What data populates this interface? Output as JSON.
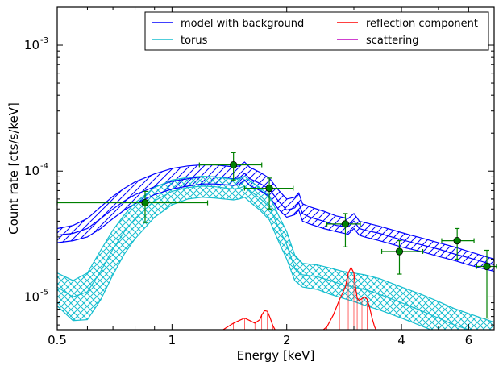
{
  "chart_data": {
    "type": "line",
    "title": "",
    "xlabel": "Energy [keV]",
    "ylabel": "Count rate [cts/s/keV]",
    "xscale": "log",
    "yscale": "log",
    "xlim": [
      0.5,
      7.0
    ],
    "ylim": [
      5.5e-06,
      0.002
    ],
    "x_ticks": [
      {
        "value": 0.5,
        "label": "0.5"
      },
      {
        "value": 1,
        "label": "1"
      },
      {
        "value": 2,
        "label": "2"
      },
      {
        "value": 4,
        "label": "4"
      },
      {
        "value": 6,
        "label": "6"
      }
    ],
    "y_ticks": [
      {
        "value": 1e-05,
        "base": "10",
        "exp": "-5"
      },
      {
        "value": 0.0001,
        "base": "10",
        "exp": "-4"
      },
      {
        "value": 0.001,
        "base": "10",
        "exp": "-3"
      }
    ],
    "legend": {
      "placement": "top-right",
      "entries": [
        {
          "label": "model with background",
          "color": "#0000ff"
        },
        {
          "label": "reflection component",
          "color": "#ff0000"
        },
        {
          "label": "torus",
          "color": "#17becf"
        },
        {
          "label": "scattering",
          "color": "#bf00bf"
        }
      ]
    },
    "series": [
      {
        "name": "model with background",
        "color": "#0000ff",
        "style": "band-hatched",
        "x": [
          0.5,
          0.55,
          0.6,
          0.65,
          0.7,
          0.75,
          0.8,
          0.9,
          1.0,
          1.1,
          1.2,
          1.3,
          1.45,
          1.5,
          1.55,
          1.6,
          1.7,
          1.8,
          1.9,
          2.0,
          2.1,
          2.15,
          2.2,
          2.3,
          2.5,
          2.7,
          2.9,
          3.0,
          3.1,
          3.2,
          3.5,
          4.0,
          4.5,
          5.0,
          5.5,
          6.0,
          7.0
        ],
        "y": [
          3.1e-05,
          3.2e-05,
          3.5e-05,
          4.2e-05,
          5e-05,
          5.8e-05,
          6.5e-05,
          7.5e-05,
          8.3e-05,
          8.7e-05,
          9e-05,
          9e-05,
          8.7e-05,
          8.8e-05,
          9.6e-05,
          8.7e-05,
          8e-05,
          7.2e-05,
          5.8e-05,
          4.9e-05,
          5.1e-05,
          5.6e-05,
          4.6e-05,
          4.3e-05,
          4e-05,
          3.7e-05,
          3.6e-05,
          4e-05,
          3.5e-05,
          3.4e-05,
          3.2e-05,
          2.85e-05,
          2.6e-05,
          2.4e-05,
          2.2e-05,
          2.05e-05,
          1.8e-05
        ],
        "lo": [
          2.7e-05,
          2.8e-05,
          3e-05,
          3.5e-05,
          4.2e-05,
          4.9e-05,
          5.5e-05,
          6.5e-05,
          7.2e-05,
          7.6e-05,
          7.9e-05,
          7.9e-05,
          7.7e-05,
          7.8e-05,
          8.5e-05,
          7.7e-05,
          7e-05,
          6.3e-05,
          5e-05,
          4.3e-05,
          4.5e-05,
          4.9e-05,
          4e-05,
          3.8e-05,
          3.5e-05,
          3.3e-05,
          3.15e-05,
          3.5e-05,
          3.1e-05,
          3e-05,
          2.8e-05,
          2.5e-05,
          2.3e-05,
          2.1e-05,
          1.95e-05,
          1.8e-05,
          1.6e-05
        ],
        "hi": [
          3.5e-05,
          3.7e-05,
          4.2e-05,
          5.2e-05,
          6.3e-05,
          7.3e-05,
          8.2e-05,
          9.5e-05,
          0.000105,
          0.00011,
          0.000112,
          0.000112,
          0.000108,
          0.00011,
          0.000118,
          0.000107,
          9.8e-05,
          8.8e-05,
          7.1e-05,
          6e-05,
          6.2e-05,
          6.7e-05,
          5.5e-05,
          5.2e-05,
          4.8e-05,
          4.4e-05,
          4.2e-05,
          4.6e-05,
          4e-05,
          3.9e-05,
          3.65e-05,
          3.25e-05,
          2.95e-05,
          2.7e-05,
          2.5e-05,
          2.3e-05,
          2e-05
        ]
      },
      {
        "name": "torus",
        "color": "#17becf",
        "style": "band-crosshatched",
        "x": [
          0.5,
          0.55,
          0.6,
          0.65,
          0.7,
          0.75,
          0.8,
          0.9,
          1.0,
          1.1,
          1.2,
          1.3,
          1.45,
          1.5,
          1.55,
          1.6,
          1.7,
          1.8,
          1.9,
          2.0,
          2.1,
          2.2,
          2.4,
          2.6,
          2.8,
          3.0,
          3.2,
          3.5,
          4.0,
          4.5,
          5.0,
          5.5,
          6.0,
          7.0
        ],
        "y": [
          1.2e-05,
          1e-05,
          1.1e-05,
          1.6e-05,
          2.4e-05,
          3.3e-05,
          4.2e-05,
          5.8e-05,
          6.9e-05,
          7.4e-05,
          7.6e-05,
          7.5e-05,
          7.2e-05,
          7.3e-05,
          7.6e-05,
          7e-05,
          6.1e-05,
          5.2e-05,
          3.6e-05,
          2.6e-05,
          1.7e-05,
          1.5e-05,
          1.45e-05,
          1.35e-05,
          1.25e-05,
          1.2e-05,
          1.15e-05,
          1.05e-05,
          9e-06,
          7.8e-06,
          6.8e-06,
          6e-06,
          5.5e-06,
          4.6e-06
        ],
        "lo": [
          8.5e-06,
          6.5e-06,
          6.6e-06,
          9.5e-06,
          1.5e-05,
          2.2e-05,
          2.9e-05,
          4.3e-05,
          5.4e-05,
          6e-05,
          6.2e-05,
          6.1e-05,
          5.9e-05,
          6e-05,
          6.2e-05,
          5.7e-05,
          4.9e-05,
          4.1e-05,
          2.8e-05,
          2e-05,
          1.35e-05,
          1.2e-05,
          1.15e-05,
          1.05e-05,
          9.8e-06,
          9.2e-06,
          8.6e-06,
          7.9e-06,
          6.8e-06,
          5.9e-06,
          5.2e-06,
          4.6e-06,
          4.2e-06,
          3.6e-06
        ],
        "hi": [
          1.55e-05,
          1.35e-05,
          1.55e-05,
          2.35e-05,
          3.4e-05,
          4.5e-05,
          5.6e-05,
          7.4e-05,
          8.5e-05,
          8.9e-05,
          9.1e-05,
          9e-05,
          8.6e-05,
          8.7e-05,
          9.1e-05,
          8.4e-05,
          7.4e-05,
          6.4e-05,
          4.5e-05,
          3.3e-05,
          2.15e-05,
          1.85e-05,
          1.8e-05,
          1.7e-05,
          1.6e-05,
          1.55e-05,
          1.5e-05,
          1.4e-05,
          1.2e-05,
          1.05e-05,
          9.2e-06,
          8.1e-06,
          7.4e-06,
          6.3e-06
        ]
      },
      {
        "name": "reflection component",
        "color": "#ff0000",
        "style": "line",
        "x": [
          1.35,
          1.4,
          1.45,
          1.5,
          1.55,
          1.6,
          1.65,
          1.7,
          1.72,
          1.75,
          1.78,
          1.81,
          1.84,
          1.87,
          1.9,
          2.4,
          2.55,
          2.65,
          2.75,
          2.85,
          2.9,
          2.95,
          3.0,
          3.03,
          3.06,
          3.1,
          3.15,
          3.2,
          3.25,
          3.3,
          3.35,
          3.4,
          3.45,
          3.5,
          3.6
        ],
        "y": [
          5.4e-06,
          5.8e-06,
          6.2e-06,
          6.5e-06,
          6.8e-06,
          6.5e-06,
          6.2e-06,
          6.6e-06,
          7.2e-06,
          7.8e-06,
          7.7e-06,
          6.8e-06,
          5.9e-06,
          5.4e-06,
          5e-06,
          5e-06,
          5.8e-06,
          7.2e-06,
          9.5e-06,
          1.2e-05,
          1.55e-05,
          1.72e-05,
          1.55e-05,
          1.2e-05,
          9.8e-06,
          9.4e-06,
          9.7e-06,
          1e-05,
          9.6e-06,
          8.2e-06,
          6.8e-06,
          5.8e-06,
          5.3e-06,
          5e-06,
          4.8e-06
        ]
      },
      {
        "name": "data",
        "color": "#008000",
        "style": "errorbar",
        "x": [
          0.85,
          1.45,
          1.8,
          2.85,
          3.95,
          5.6,
          6.7
        ],
        "xlo": [
          0.5,
          1.18,
          1.55,
          2.55,
          3.55,
          5.1,
          6.3
        ],
        "xhi": [
          1.24,
          1.72,
          2.08,
          3.12,
          4.55,
          6.2,
          7.1
        ],
        "y": [
          5.6e-05,
          0.000112,
          7.3e-05,
          3.8e-05,
          2.3e-05,
          2.8e-05,
          1.75e-05
        ],
        "ylo": [
          3.9e-05,
          8.5e-05,
          5e-05,
          2.5e-05,
          1.52e-05,
          2e-05,
          6.8e-06
        ],
        "yhi": [
          6.9e-05,
          0.00014,
          8.8e-05,
          4.6e-05,
          2.8e-05,
          3.5e-05,
          2.35e-05
        ]
      }
    ]
  }
}
